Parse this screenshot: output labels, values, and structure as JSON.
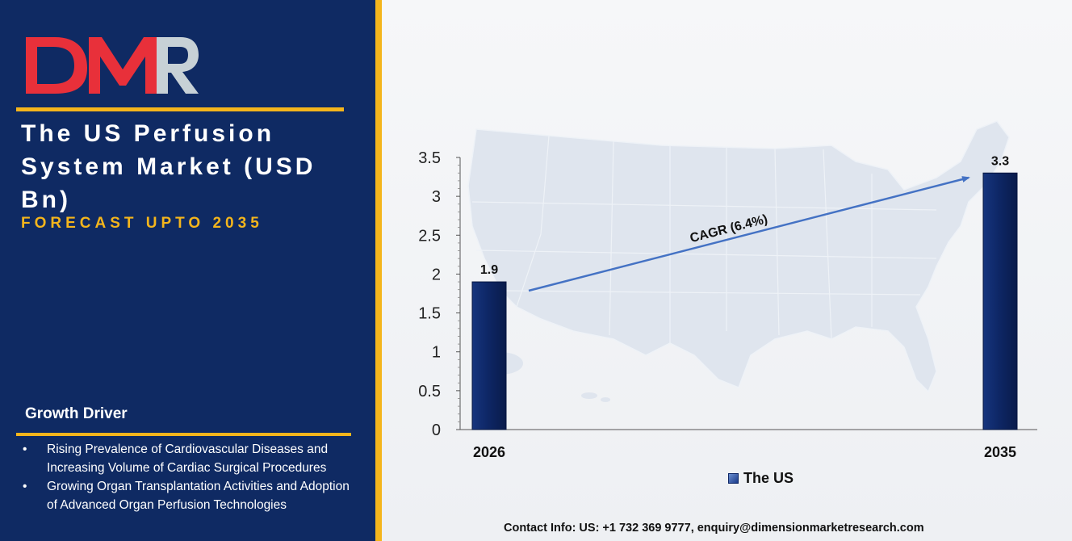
{
  "logo": {
    "text": "DMR",
    "colors": {
      "D": "#e8303a",
      "M": "#e8303a",
      "R": "#c7d1d6"
    }
  },
  "header": {
    "title": "The US Perfusion System Market (USD Bn)",
    "subtitle": "FORECAST UPTO 2035"
  },
  "growth_driver": {
    "title": "Growth Driver",
    "items": [
      "Rising Prevalence of Cardiovascular Diseases and Increasing Volume of Cardiac Surgical Procedures",
      "Growing Organ Transplantation Activities and Adoption of Advanced Organ Perfusion Technologies"
    ]
  },
  "chart_data": {
    "type": "bar",
    "categories": [
      "2026",
      "2035"
    ],
    "series": [
      {
        "name": "The US",
        "values": [
          1.9,
          3.3
        ]
      }
    ],
    "data_labels": [
      "1.9",
      "3.3"
    ],
    "ylim": [
      0,
      3.5
    ],
    "yticks": [
      "0",
      "0.5",
      "1",
      "1.5",
      "2",
      "2.5",
      "3",
      "3.5"
    ],
    "annotation": "CAGR (6.4%)",
    "legend_position": "bottom",
    "grid": false,
    "bar_color": "#0e2766"
  },
  "legend": {
    "label": "The US"
  },
  "contact": "Contact Info: US: +1 732 369 9777, enquiry@dimensionmarketresearch.com",
  "colors": {
    "panel": "#0f2a63",
    "accent": "#f4b51c",
    "arrow": "#4472c4"
  }
}
